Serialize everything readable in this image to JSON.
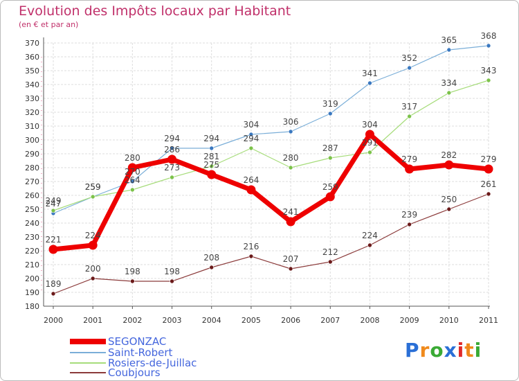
{
  "title": "Evolution des Impôts locaux par Habitant",
  "subtitle": "(en € et par an)",
  "logo": {
    "text": "Proxiti",
    "colors": [
      "#2a6fd6",
      "#f08a1c",
      "#3aaa35",
      "#2a6fd6",
      "#e02a2a",
      "#f08a1c",
      "#3aaa35"
    ]
  },
  "chart_data": {
    "type": "line",
    "x": [
      2000,
      2001,
      2002,
      2003,
      2004,
      2005,
      2006,
      2007,
      2008,
      2009,
      2010,
      2011
    ],
    "ylim": [
      180,
      370
    ],
    "yticks": [
      180,
      190,
      200,
      210,
      220,
      230,
      240,
      250,
      260,
      270,
      280,
      290,
      300,
      310,
      320,
      330,
      340,
      350,
      360,
      370
    ],
    "grid": true,
    "legend": "bottom-left",
    "series": [
      {
        "name": "Saint-Robert",
        "color": "#7aaed8",
        "marker": "#3a78c0",
        "width": 1.2,
        "values": [
          247,
          259,
          270,
          294,
          294,
          304,
          306,
          319,
          341,
          352,
          365,
          368
        ],
        "labels": [
          "247",
          "259",
          "270",
          "294",
          "294",
          "304",
          "306",
          "319",
          "341",
          "352",
          "365",
          "368"
        ]
      },
      {
        "name": "Rosiers-de-Juillac",
        "color": "#a6dc7a",
        "marker": "#7cc24a",
        "width": 1.2,
        "values": [
          249,
          259,
          264,
          273,
          281,
          294,
          280,
          287,
          291,
          317,
          334,
          343
        ],
        "labels": [
          "249",
          "259",
          "264",
          "273",
          "281",
          "294",
          "280",
          "287",
          "291",
          "317",
          "334",
          "343"
        ]
      },
      {
        "name": "Coubjours",
        "color": "#8b3a3a",
        "marker": "#6b1a1a",
        "width": 1.2,
        "values": [
          189,
          200,
          198,
          198,
          208,
          216,
          207,
          212,
          224,
          239,
          250,
          261
        ],
        "labels": [
          "189",
          "200",
          "198",
          "198",
          "208",
          "216",
          "207",
          "212",
          "224",
          "239",
          "250",
          "261"
        ]
      },
      {
        "name": "SEGONZAC",
        "color": "#ee0000",
        "marker": "#ee0000",
        "width": 7,
        "values": [
          221,
          224,
          280,
          286,
          275,
          264,
          241,
          259,
          304,
          279,
          282,
          279
        ],
        "labels": [
          "221",
          "224",
          "280",
          "286",
          "275",
          "264",
          "241",
          "259",
          "304",
          "279",
          "282",
          "279"
        ]
      }
    ],
    "legend_entries": [
      {
        "name": "SEGONZAC",
        "color": "#ee0000"
      },
      {
        "name": "Saint-Robert",
        "color": "#7aaed8"
      },
      {
        "name": "Rosiers-de-Juillac",
        "color": "#a6dc7a"
      },
      {
        "name": "Coubjours",
        "color": "#8b3a3a"
      }
    ]
  }
}
